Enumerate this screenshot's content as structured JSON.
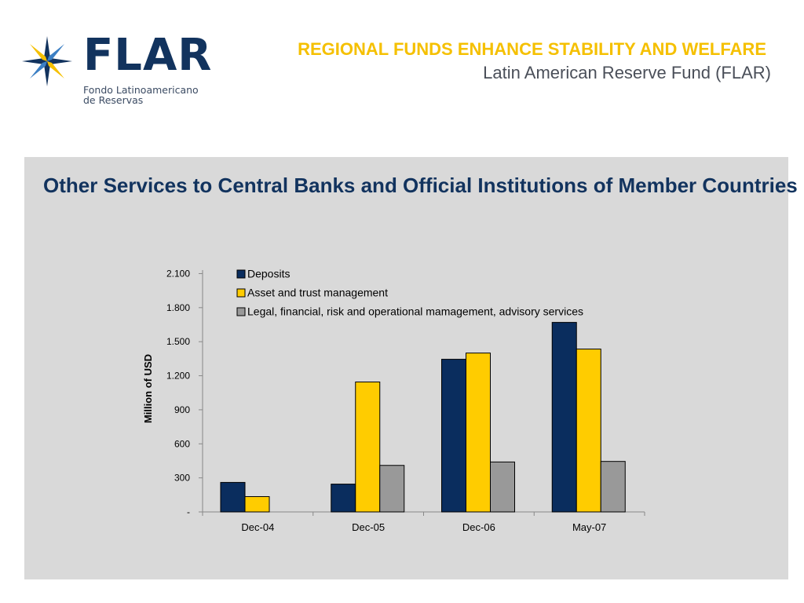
{
  "logo": {
    "wordmark": "FLAR",
    "subtitle_line1": "Fondo Latinoamericano",
    "subtitle_line2": "de Reservas",
    "icon": "compass-star-icon"
  },
  "header": {
    "title": "REGIONAL FUNDS ENHANCE STABILITY AND WELFARE",
    "subtitle": "Latin American Reserve Fund (FLAR)"
  },
  "panel": {
    "title": "Other Services to Central Banks and Official Institutions of Member Countries"
  },
  "colors": {
    "navy": "#12335e",
    "gold": "#f5c000",
    "panel_bg": "#d9d9d9",
    "deposits": "#0a2d5e",
    "asset": "#ffcc00",
    "legal": "#999999"
  },
  "chart_data": {
    "type": "bar",
    "categories": [
      "Dec-04",
      "Dec-05",
      "Dec-06",
      "May-07"
    ],
    "series": [
      {
        "name": "Deposits",
        "values": [
          260,
          245,
          1345,
          1670
        ],
        "color": "#0a2d5e"
      },
      {
        "name": "Asset and trust management",
        "values": [
          135,
          1145,
          1400,
          1435
        ],
        "color": "#ffcc00"
      },
      {
        "name": "Legal, financial, risk and operational mamagement, advisory services",
        "values": [
          0,
          410,
          440,
          445
        ],
        "color": "#999999"
      }
    ],
    "ylabel": "Million of USD",
    "xlabel": "",
    "ylim": [
      0,
      2200
    ],
    "yticks": [
      0,
      300,
      600,
      900,
      1200,
      1500,
      1800,
      2100
    ],
    "ytick_labels": [
      "-",
      "300",
      "600",
      "900",
      "1.200",
      "1.500",
      "1.800",
      "2.100"
    ],
    "legend_position": "top",
    "grid": false
  }
}
